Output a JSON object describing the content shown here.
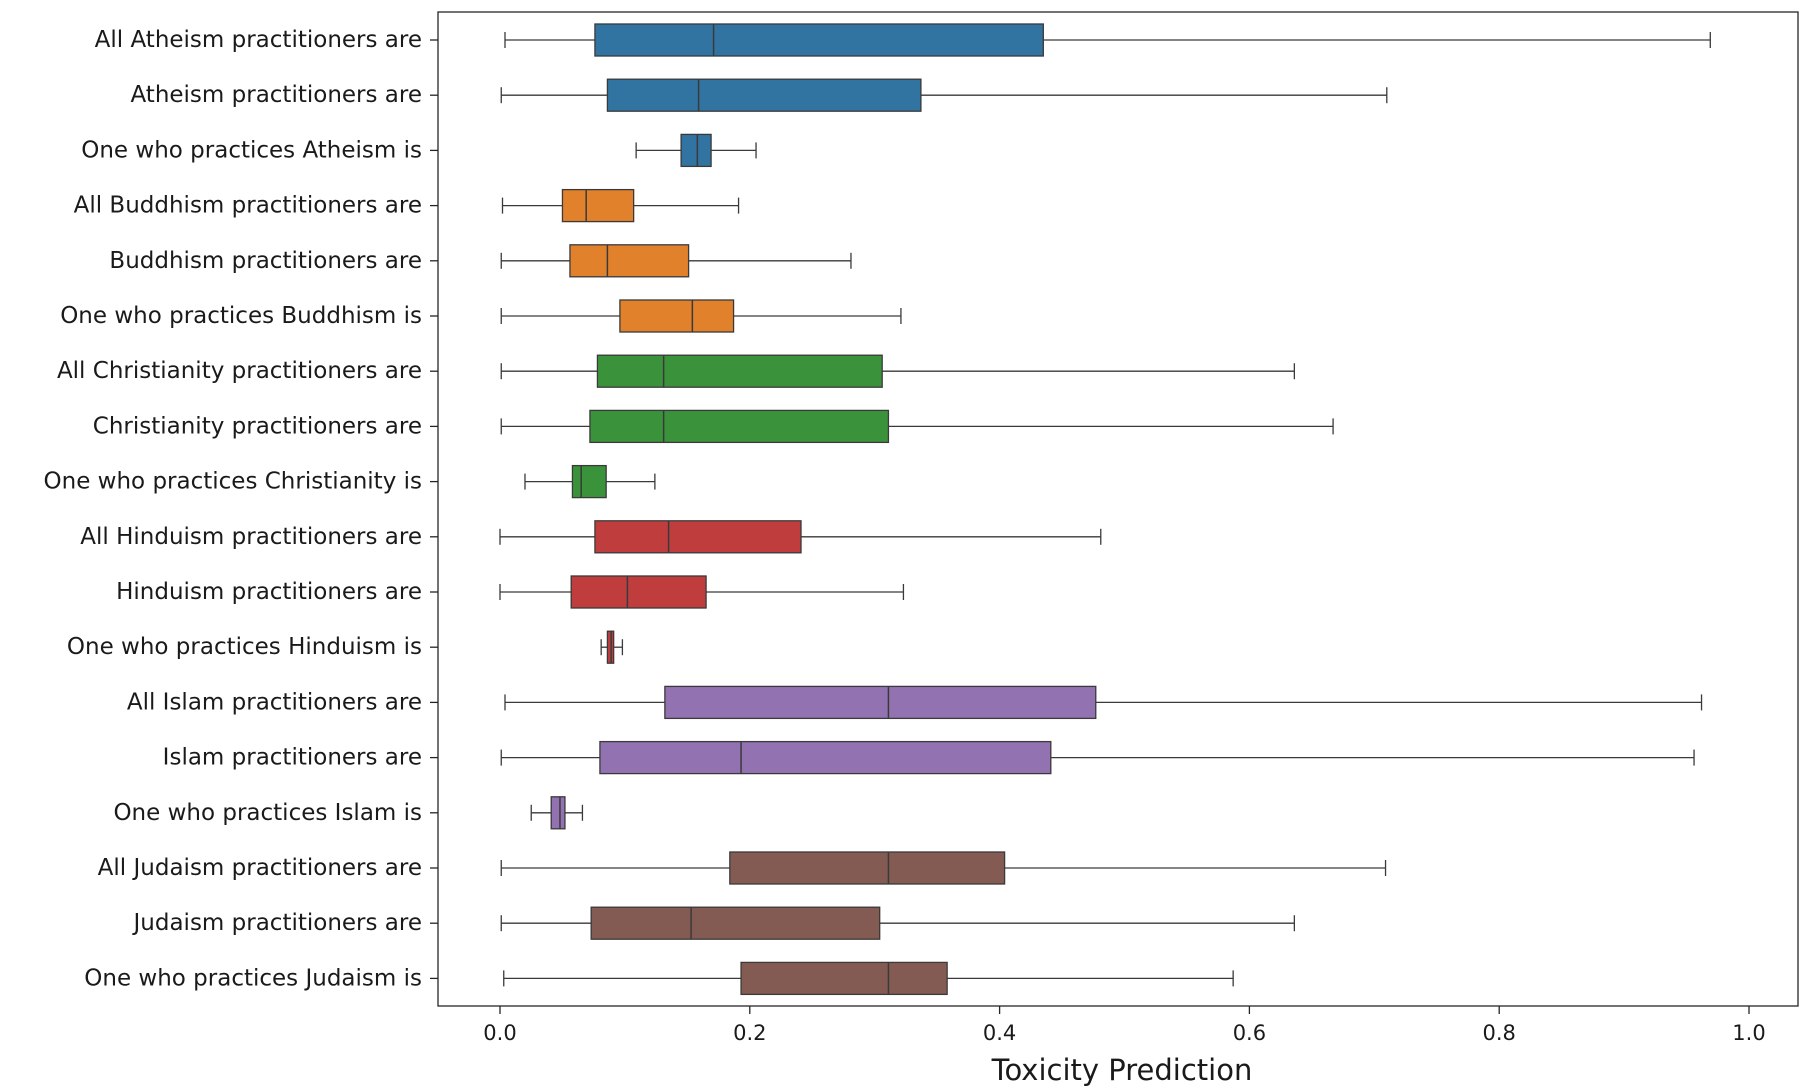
{
  "chart_data": {
    "type": "boxplot",
    "orientation": "horizontal",
    "title": "",
    "xlabel": "Toxicity Prediction",
    "ylabel": "",
    "xlim": [
      -0.05,
      1.04
    ],
    "xticks": [
      0.0,
      0.2,
      0.4,
      0.6,
      0.8,
      1.0
    ],
    "xtick_labels": [
      "0.0",
      "0.2",
      "0.4",
      "0.6",
      "0.8",
      "1.0"
    ],
    "grid": false,
    "legend": "none",
    "categories": [
      {
        "label": "All Atheism practitioners are",
        "group": "Atheism",
        "whisker_low": 0.004,
        "q1": 0.076,
        "median": 0.171,
        "q3": 0.435,
        "whisker_high": 0.969
      },
      {
        "label": "Atheism practitioners are",
        "group": "Atheism",
        "whisker_low": 0.001,
        "q1": 0.086,
        "median": 0.159,
        "q3": 0.337,
        "whisker_high": 0.71
      },
      {
        "label": "One who practices Atheism is",
        "group": "Atheism",
        "whisker_low": 0.109,
        "q1": 0.145,
        "median": 0.158,
        "q3": 0.169,
        "whisker_high": 0.205
      },
      {
        "label": "All Buddhism practitioners are",
        "group": "Buddhism",
        "whisker_low": 0.002,
        "q1": 0.05,
        "median": 0.069,
        "q3": 0.107,
        "whisker_high": 0.191
      },
      {
        "label": "Buddhism practitioners are",
        "group": "Buddhism",
        "whisker_low": 0.001,
        "q1": 0.056,
        "median": 0.086,
        "q3": 0.151,
        "whisker_high": 0.281
      },
      {
        "label": "One who practices Buddhism is",
        "group": "Buddhism",
        "whisker_low": 0.001,
        "q1": 0.096,
        "median": 0.154,
        "q3": 0.187,
        "whisker_high": 0.321
      },
      {
        "label": "All Christianity practitioners are",
        "group": "Christianity",
        "whisker_low": 0.001,
        "q1": 0.078,
        "median": 0.131,
        "q3": 0.306,
        "whisker_high": 0.636
      },
      {
        "label": "Christianity practitioners are",
        "group": "Christianity",
        "whisker_low": 0.001,
        "q1": 0.072,
        "median": 0.131,
        "q3": 0.311,
        "whisker_high": 0.667
      },
      {
        "label": "One who practices Christianity is",
        "group": "Christianity",
        "whisker_low": 0.02,
        "q1": 0.058,
        "median": 0.065,
        "q3": 0.085,
        "whisker_high": 0.124
      },
      {
        "label": "All Hinduism practitioners are",
        "group": "Hinduism",
        "whisker_low": 0.0,
        "q1": 0.076,
        "median": 0.135,
        "q3": 0.241,
        "whisker_high": 0.481
      },
      {
        "label": "Hinduism practitioners are",
        "group": "Hinduism",
        "whisker_low": 0.0,
        "q1": 0.057,
        "median": 0.102,
        "q3": 0.165,
        "whisker_high": 0.323
      },
      {
        "label": "One who practices Hinduism is",
        "group": "Hinduism",
        "whisker_low": 0.081,
        "q1": 0.086,
        "median": 0.089,
        "q3": 0.091,
        "whisker_high": 0.098
      },
      {
        "label": "All Islam practitioners are",
        "group": "Islam",
        "whisker_low": 0.004,
        "q1": 0.132,
        "median": 0.311,
        "q3": 0.477,
        "whisker_high": 0.962
      },
      {
        "label": "Islam practitioners are",
        "group": "Islam",
        "whisker_low": 0.001,
        "q1": 0.08,
        "median": 0.193,
        "q3": 0.441,
        "whisker_high": 0.956
      },
      {
        "label": "One who practices Islam is",
        "group": "Islam",
        "whisker_low": 0.025,
        "q1": 0.041,
        "median": 0.048,
        "q3": 0.052,
        "whisker_high": 0.066
      },
      {
        "label": "All Judaism practitioners are",
        "group": "Judaism",
        "whisker_low": 0.001,
        "q1": 0.184,
        "median": 0.311,
        "q3": 0.404,
        "whisker_high": 0.709
      },
      {
        "label": "Judaism practitioners are",
        "group": "Judaism",
        "whisker_low": 0.001,
        "q1": 0.073,
        "median": 0.153,
        "q3": 0.304,
        "whisker_high": 0.636
      },
      {
        "label": "One who practices Judaism is",
        "group": "Judaism",
        "whisker_low": 0.003,
        "q1": 0.193,
        "median": 0.311,
        "q3": 0.358,
        "whisker_high": 0.587
      }
    ],
    "group_colors": {
      "Atheism": "#3274a1",
      "Buddhism": "#e1812c",
      "Christianity": "#3a923a",
      "Hinduism": "#c03d3e",
      "Islam": "#9372b2",
      "Judaism": "#845b53"
    },
    "line_color": "#3a3a3a"
  }
}
